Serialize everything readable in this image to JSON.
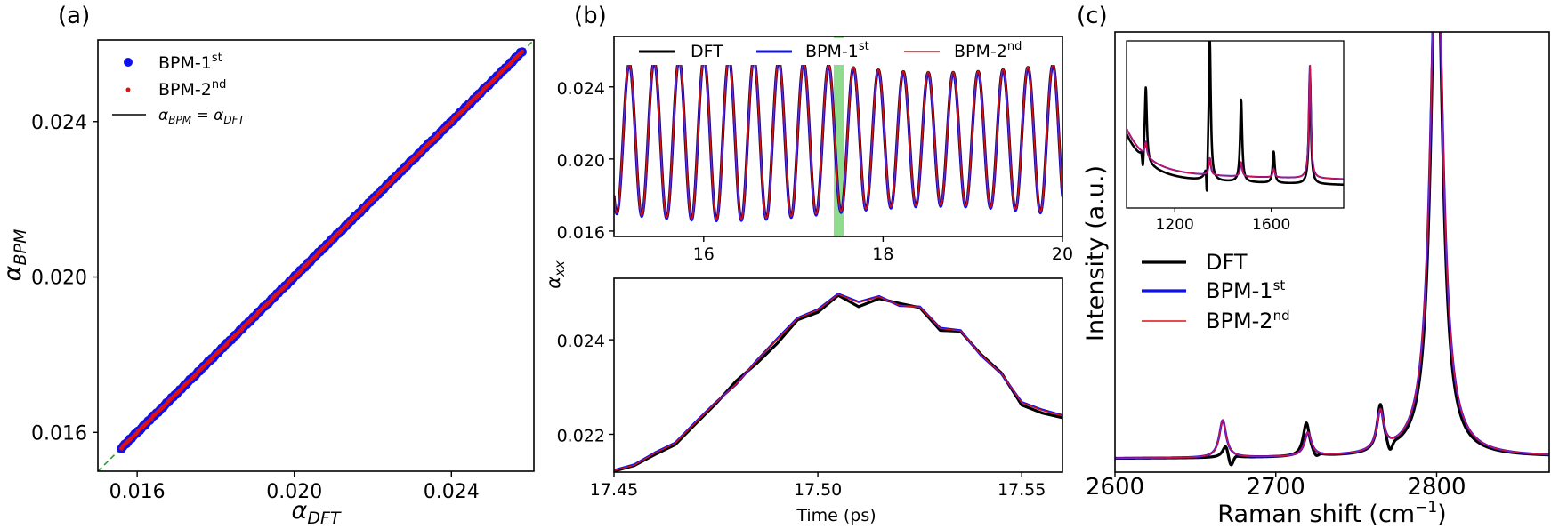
{
  "chart_data": [
    {
      "panel": "(a)",
      "type": "scatter",
      "xlabel": "α_DFT",
      "ylabel": "α_BPM",
      "xlim": [
        0.015,
        0.0261
      ],
      "ylim": [
        0.015,
        0.0261
      ],
      "xticks": [
        0.016,
        0.02,
        0.024
      ],
      "yticks": [
        0.016,
        0.02,
        0.024
      ],
      "xtick_labels": [
        "0.016",
        "0.020",
        "0.024"
      ],
      "ytick_labels": [
        "0.016",
        "0.020",
        "0.024"
      ],
      "legend": {
        "placement": "top-left",
        "entries": [
          {
            "base": "BPM-1",
            "sup": "st"
          },
          {
            "base": "BPM-2",
            "sup": "nd"
          },
          {
            "text": "α_BPM = α_DFT"
          }
        ]
      },
      "range": [
        0.0156,
        0.0258
      ],
      "series": [
        {
          "name": "BPM-1st",
          "color": "#1010ee",
          "marker": "circle-large"
        },
        {
          "name": "BPM-2nd",
          "color": "#dd1111",
          "marker": "circle-small"
        },
        {
          "name": "α_BPM = α_DFT",
          "color": "#000000",
          "style": "dashed-green-diagonal"
        }
      ]
    },
    {
      "panel": "(b) top",
      "type": "line",
      "xlim": [
        15.0,
        20.0
      ],
      "ylim": [
        0.0157,
        0.0268
      ],
      "xticks": [
        16,
        18,
        20
      ],
      "yticks": [
        0.016,
        0.02,
        0.024
      ],
      "xtick_labels": [
        "16",
        "18",
        "20"
      ],
      "ytick_labels": [
        "0.016",
        "0.020",
        "0.024"
      ],
      "period_ps": 0.2778,
      "mean": 0.0211,
      "amplitude_range": [
        0.0037,
        0.0045
      ],
      "highlight_x": [
        17.45,
        17.56
      ],
      "legend": {
        "placement": "top",
        "entries": [
          {
            "text": "DFT"
          },
          {
            "base": "BPM-1",
            "sup": "st"
          },
          {
            "base": "BPM-2",
            "sup": "nd"
          }
        ]
      },
      "series": [
        {
          "name": "DFT",
          "color": "#000000"
        },
        {
          "name": "BPM-1st",
          "color": "#1010ee"
        },
        {
          "name": "BPM-2nd",
          "color": "#dd1111"
        }
      ]
    },
    {
      "panel": "(b) bottom",
      "type": "line",
      "xlabel": "Time (ps)",
      "ylabel": "α_xx",
      "xlim": [
        17.45,
        17.56
      ],
      "ylim": [
        0.0212,
        0.0253
      ],
      "xticks": [
        17.45,
        17.5,
        17.55
      ],
      "yticks": [
        0.022,
        0.024
      ],
      "xtick_labels": [
        "17.45",
        "17.50",
        "17.55"
      ],
      "ytick_labels": [
        "0.022",
        "0.024"
      ],
      "x": [
        17.45,
        17.455,
        17.46,
        17.465,
        17.47,
        17.475,
        17.48,
        17.485,
        17.49,
        17.495,
        17.5,
        17.505,
        17.51,
        17.515,
        17.52,
        17.525,
        17.53,
        17.535,
        17.54,
        17.545,
        17.55,
        17.555,
        17.56
      ],
      "series": [
        {
          "name": "DFT",
          "color": "#000000",
          "values": [
            0.02122,
            0.02134,
            0.02157,
            0.02178,
            0.02222,
            0.02265,
            0.02313,
            0.0235,
            0.02392,
            0.02442,
            0.02458,
            0.02494,
            0.0247,
            0.02487,
            0.02477,
            0.02468,
            0.0242,
            0.02418,
            0.02369,
            0.0233,
            0.02262,
            0.02245,
            0.02235
          ]
        },
        {
          "name": "BPM-1st",
          "color": "#1010ee",
          "values": [
            0.02124,
            0.02136,
            0.02161,
            0.02182,
            0.02226,
            0.02268,
            0.02306,
            0.02356,
            0.02402,
            0.02446,
            0.02464,
            0.02497,
            0.0248,
            0.02492,
            0.02472,
            0.0247,
            0.02425,
            0.0242,
            0.02367,
            0.02328,
            0.02268,
            0.02252,
            0.0224
          ]
        },
        {
          "name": "BPM-2nd",
          "color": "#dd1111",
          "values": [
            0.02123,
            0.02135,
            0.0216,
            0.02181,
            0.02225,
            0.02267,
            0.02307,
            0.02355,
            0.02401,
            0.02445,
            0.02463,
            0.02496,
            0.02479,
            0.02491,
            0.02473,
            0.02469,
            0.02424,
            0.02419,
            0.02368,
            0.02329,
            0.02267,
            0.02251,
            0.02239
          ]
        }
      ]
    },
    {
      "panel": "(c)",
      "type": "line",
      "xlabel": "Raman shift (cm⁻¹)",
      "ylabel": "Intensity (a.u.)",
      "xlim": [
        2600,
        2870
      ],
      "xticks": [
        2600,
        2700,
        2800
      ],
      "xtick_labels": [
        "2600",
        "2700",
        "2800"
      ],
      "legend": {
        "placement": "center-left",
        "entries": [
          {
            "text": "DFT"
          },
          {
            "base": "BPM-1",
            "sup": "st"
          },
          {
            "base": "BPM-2",
            "sup": "nd"
          }
        ]
      },
      "peaks_bpm": [
        {
          "x": 2667,
          "height": 0.095
        },
        {
          "x": 2720,
          "height": 0.06
        },
        {
          "x": 2765,
          "height": 0.1
        },
        {
          "x": 2800,
          "height": 1.4
        }
      ],
      "peaks_dft": [
        {
          "x": 2669,
          "height": 0.03
        },
        {
          "x": 2719,
          "height": 0.085
        },
        {
          "x": 2765,
          "height": 0.115
        },
        {
          "x": 2800,
          "height": 1.4
        }
      ],
      "series": [
        {
          "name": "DFT",
          "color": "#000000"
        },
        {
          "name": "BPM-1st",
          "color": "#1010ee"
        },
        {
          "name": "BPM-2nd",
          "color": "#cc1155"
        }
      ],
      "inset": {
        "xlim": [
          1000,
          1900
        ],
        "xticks": [
          1200,
          1600
        ],
        "xtick_labels": [
          "1200",
          "1600"
        ],
        "peaks_dft": [
          {
            "x": 1080,
            "height": 0.52
          },
          {
            "x": 1345,
            "height": 1.0
          },
          {
            "x": 1475,
            "height": 0.58
          },
          {
            "x": 1610,
            "height": 0.22
          },
          {
            "x": 1760,
            "height": 0.78
          }
        ],
        "peaks_bpm": [
          {
            "x": 1080,
            "height": 0.1
          },
          {
            "x": 1345,
            "height": 0.12
          },
          {
            "x": 1475,
            "height": 0.1
          },
          {
            "x": 1610,
            "height": 0.06
          },
          {
            "x": 1760,
            "height": 0.8
          }
        ]
      }
    }
  ],
  "panel_labels": {
    "a": "(a)",
    "b": "(b)",
    "c": "(c)"
  },
  "axis_text": {
    "a_xlabel_base": "α",
    "a_xlabel_sub": "DFT",
    "a_ylabel_base": "α",
    "a_ylabel_sub": "BPM",
    "b_ylabel_base": "α",
    "b_ylabel_sub": "xx",
    "b_xlabel": "Time (ps)",
    "c_ylabel": "Intensity (a.u.)",
    "c_xlabel_main": "Raman shift (cm",
    "c_xlabel_sup": "−1",
    "c_xlabel_end": ")"
  },
  "legend_text": {
    "bpm1_base": "BPM-1",
    "bpm1_sup": "st",
    "bpm2_base": "BPM-2",
    "bpm2_sup": "nd",
    "dft": "DFT",
    "ident_lhs": "α",
    "ident_lhs_sub": "BPM",
    "ident_eq": " = ",
    "ident_rhs": "α",
    "ident_rhs_sub": "DFT"
  }
}
